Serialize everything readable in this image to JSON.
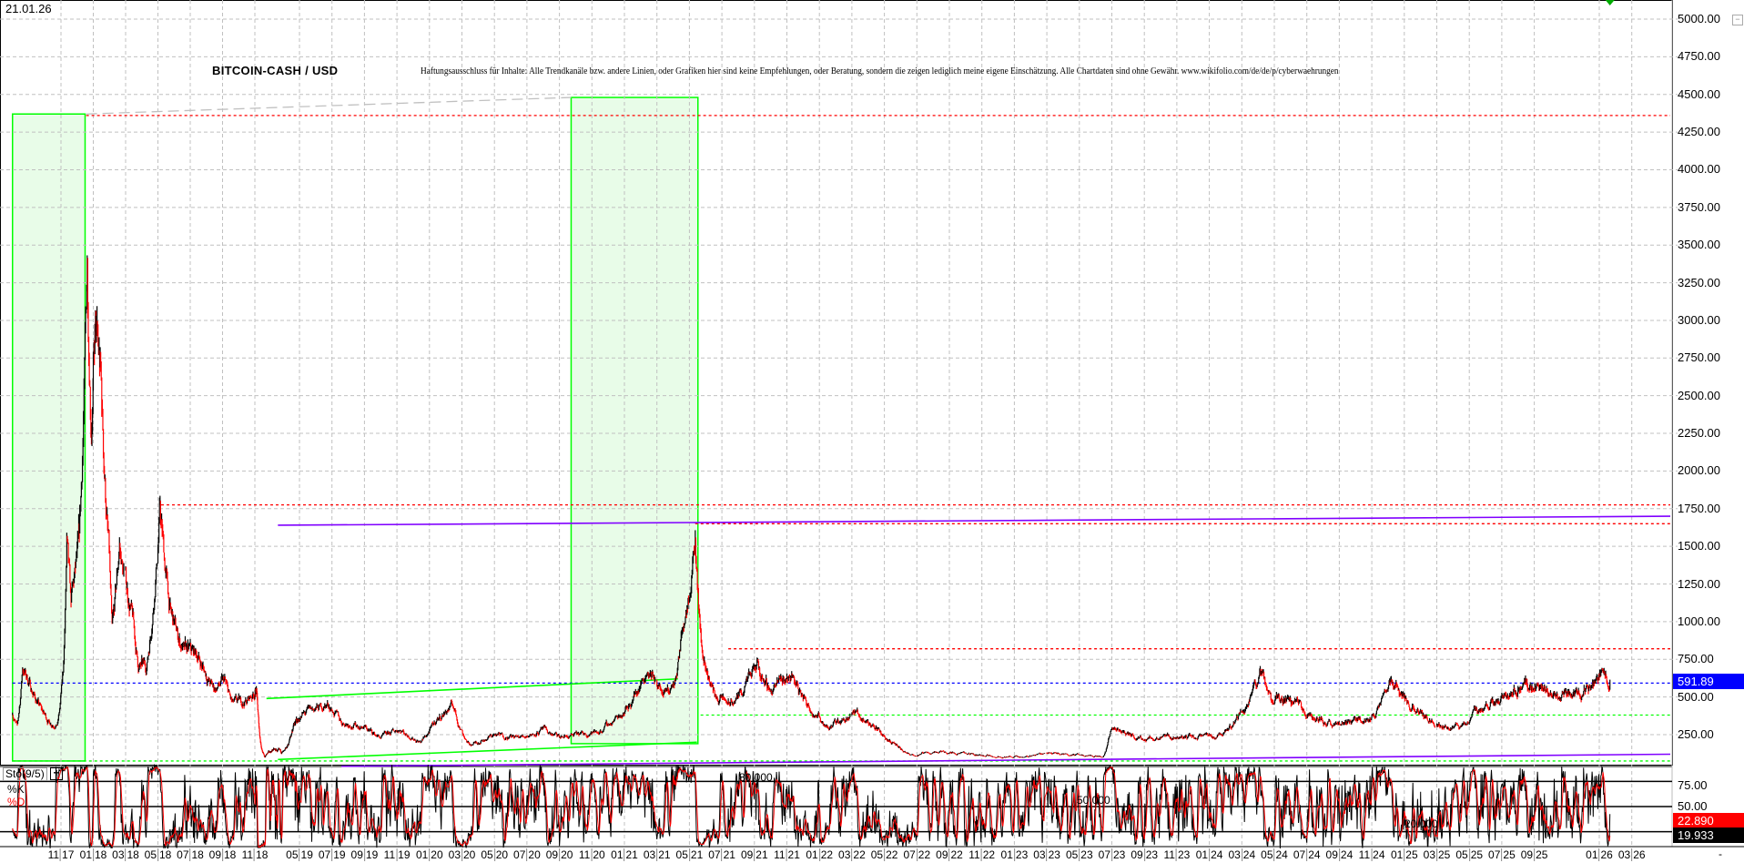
{
  "header": {
    "date": "21.01.26",
    "title": "BITCOIN-CASH / USD",
    "disclaimer": "Haftungsausschluss für Inhalte: Alle Trendkanäle bzw. andere Linien, oder Grafiken hier sind keine Empfehlungen, oder Beratung, sondern die zeigen lediglich meine eigene Einschätzung. Alle Chartdaten sind ohne Gewähr.  www.wikifolio.com/de/de/p/cyberwaehrungen"
  },
  "colors": {
    "up": "#000000",
    "down": "#ff0000",
    "grid": "#c0c0c0",
    "zone_fill": "#e8fce8",
    "zone_border": "#00ff00",
    "last_price": "#0000ff",
    "k_line": "#000000",
    "d_line": "#ff0000"
  },
  "chart_data": [
    {
      "type": "line",
      "subtype": "candlestick",
      "title": "BITCOIN-CASH / USD",
      "ylim": [
        0,
        5000
      ],
      "grid": true,
      "y_ticks": [
        "5000.00",
        "4750.00",
        "4500.00",
        "4250.00",
        "4000.00",
        "3750.00",
        "3500.00",
        "3250.00",
        "3000.00",
        "2750.00",
        "2500.00",
        "2250.00",
        "2000.00",
        "1750.00",
        "1500.00",
        "1250.00",
        "1000.00",
        "750.00",
        "500.00",
        "250.00"
      ],
      "x_ticks": [
        "11 17",
        "01 18",
        "03 18",
        "05 18",
        "07 18",
        "09 18",
        "11 18",
        "05 19",
        "07 19",
        "09 19",
        "11 19",
        "01 20",
        "03 20",
        "05 20",
        "07 20",
        "09 20",
        "11 20",
        "01 21",
        "03 21",
        "05 21",
        "07 21",
        "09 21",
        "11 21",
        "01 22",
        "03 22",
        "05 22",
        "07 22",
        "09 22",
        "11 22",
        "01 23",
        "03 23",
        "05 23",
        "07 23",
        "09 23",
        "11 23",
        "01 24",
        "03 24",
        "05 24",
        "07 24",
        "09 24",
        "11 24",
        "01 25",
        "03 25",
        "05 25",
        "07 25",
        "09 25",
        "01 26",
        "03 26"
      ],
      "x_axis_end": "-",
      "last_price": "591.89",
      "price_points": [
        [
          "2017-08-01",
          400
        ],
        [
          "2017-08-10",
          300
        ],
        [
          "2017-08-20",
          700
        ],
        [
          "2017-09-01",
          600
        ],
        [
          "2017-09-20",
          450
        ],
        [
          "2017-10-10",
          330
        ],
        [
          "2017-10-25",
          320
        ],
        [
          "2017-11-05",
          650
        ],
        [
          "2017-11-12",
          1500
        ],
        [
          "2017-11-20",
          1100
        ],
        [
          "2017-12-05",
          1500
        ],
        [
          "2017-12-20",
          3380
        ],
        [
          "2017-12-28",
          2400
        ],
        [
          "2018-01-05",
          2900
        ],
        [
          "2018-01-15",
          2600
        ],
        [
          "2018-02-01",
          1400
        ],
        [
          "2018-02-06",
          900
        ],
        [
          "2018-02-20",
          1500
        ],
        [
          "2018-03-15",
          1000
        ],
        [
          "2018-03-25",
          700
        ],
        [
          "2018-04-10",
          700
        ],
        [
          "2018-05-05",
          1750
        ],
        [
          "2018-05-25",
          1050
        ],
        [
          "2018-06-20",
          800
        ],
        [
          "2018-07-15",
          780
        ],
        [
          "2018-08-15",
          550
        ],
        [
          "2018-09-05",
          600
        ],
        [
          "2018-09-20",
          450
        ],
        [
          "2018-10-15",
          470
        ],
        [
          "2018-11-08",
          560
        ],
        [
          "2018-11-25",
          200
        ],
        [
          "2018-12-10",
          100
        ],
        [
          "2018-12-20",
          120
        ],
        [
          "2019-01-15",
          150
        ],
        [
          "2019-03-01",
          130
        ],
        [
          "2019-04-05",
          300
        ],
        [
          "2019-05-15",
          400
        ],
        [
          "2019-06-25",
          450
        ],
        [
          "2019-07-20",
          330
        ],
        [
          "2019-09-01",
          300
        ],
        [
          "2019-10-01",
          230
        ],
        [
          "2019-11-05",
          290
        ],
        [
          "2019-12-15",
          200
        ],
        [
          "2020-01-15",
          350
        ],
        [
          "2020-02-15",
          450
        ],
        [
          "2020-03-15",
          180
        ],
        [
          "2020-05-01",
          250
        ],
        [
          "2020-06-15",
          230
        ],
        [
          "2020-08-01",
          280
        ],
        [
          "2020-09-01",
          230
        ],
        [
          "2020-11-15",
          270
        ],
        [
          "2021-01-10",
          450
        ],
        [
          "2021-02-15",
          700
        ],
        [
          "2021-03-15",
          500
        ],
        [
          "2021-04-05",
          600
        ],
        [
          "2021-04-20",
          1000
        ],
        [
          "2021-05-12",
          1600
        ],
        [
          "2021-05-25",
          800
        ],
        [
          "2021-06-20",
          500
        ],
        [
          "2021-07-20",
          450
        ],
        [
          "2021-09-05",
          700
        ],
        [
          "2021-10-01",
          550
        ],
        [
          "2021-11-10",
          650
        ],
        [
          "2021-12-10",
          450
        ],
        [
          "2022-01-20",
          300
        ],
        [
          "2022-03-05",
          400
        ],
        [
          "2022-04-15",
          300
        ],
        [
          "2022-05-15",
          200
        ],
        [
          "2022-06-20",
          110
        ],
        [
          "2022-08-15",
          140
        ],
        [
          "2022-11-10",
          110
        ],
        [
          "2023-01-15",
          100
        ],
        [
          "2023-03-01",
          130
        ],
        [
          "2023-06-15",
          105
        ],
        [
          "2023-07-01",
          300
        ],
        [
          "2023-08-15",
          230
        ],
        [
          "2023-10-15",
          230
        ],
        [
          "2024-01-15",
          240
        ],
        [
          "2024-03-05",
          400
        ],
        [
          "2024-04-05",
          680
        ],
        [
          "2024-04-25",
          480
        ],
        [
          "2024-06-10",
          450
        ],
        [
          "2024-07-15",
          350
        ],
        [
          "2024-09-01",
          320
        ],
        [
          "2024-11-01",
          360
        ],
        [
          "2024-12-05",
          600
        ],
        [
          "2025-01-15",
          450
        ],
        [
          "2025-03-01",
          330
        ],
        [
          "2025-04-10",
          290
        ],
        [
          "2025-05-15",
          400
        ],
        [
          "2025-07-01",
          480
        ],
        [
          "2025-08-15",
          580
        ],
        [
          "2025-10-10",
          520
        ],
        [
          "2025-11-10",
          500
        ],
        [
          "2025-12-20",
          570
        ],
        [
          "2026-01-10",
          660
        ],
        [
          "2026-01-21",
          591.89
        ]
      ],
      "zones": [
        {
          "from": "2017-08-01",
          "to": "2017-12-16",
          "top": 4370,
          "bottom": 75
        },
        {
          "from": "2020-09-23",
          "to": "2021-05-17",
          "top": 4480,
          "bottom": 190
        }
      ],
      "levels": [
        {
          "price": 4360,
          "from": "2017-12-18",
          "color": "#ff0000",
          "style": "dotted"
        },
        {
          "price": 1775,
          "from": "2018-05-07",
          "color": "#ff0000",
          "style": "dotted"
        },
        {
          "price": 1650,
          "from": "2021-05-12",
          "color": "#ff0000",
          "style": "dotted"
        },
        {
          "price": 820,
          "from": "2021-07-13",
          "color": "#ff0000",
          "style": "dotted"
        },
        {
          "price": 591.89,
          "from": "2017-08-01",
          "color": "#0000ff",
          "style": "dotted"
        },
        {
          "price": 380,
          "from": "2021-05-22",
          "color": "#00ff00",
          "style": "dotted"
        },
        {
          "price": 75,
          "from": "2017-08-01",
          "color": "#00ff00",
          "style": "dotted"
        }
      ],
      "trendlines": [
        {
          "from": [
            "2017-12-18",
            4370
          ],
          "to": [
            "2020-09-23",
            4480
          ],
          "color": "#c0c0c0",
          "style": "dashed"
        },
        {
          "from": [
            "2019-02-04",
            1640
          ],
          "to": [
            "2026-05-13",
            1700
          ],
          "color": "#8000ff",
          "style": "solid"
        },
        {
          "from": [
            "2019-07-19",
            40
          ],
          "to": [
            "2026-05-13",
            120
          ],
          "color": "#8000ff",
          "style": "solid"
        },
        {
          "from": [
            "2018-12-18",
            490
          ],
          "to": [
            "2021-04-10",
            620
          ],
          "color": "#00ff00",
          "style": "solid"
        },
        {
          "from": [
            "2019-02-04",
            85
          ],
          "to": [
            "2021-05-15",
            200
          ],
          "color": "#00ff00",
          "style": "solid"
        }
      ],
      "marker": {
        "date": "2026-01-21",
        "shape": "triangle-down",
        "color": "#00aa00"
      }
    },
    {
      "type": "line",
      "title": "Sto(9/5)",
      "ylim": [
        0,
        100
      ],
      "series": [
        {
          "name": "%K",
          "color": "#000000"
        },
        {
          "name": "%D",
          "color": "#ff0000"
        }
      ],
      "y_ticks": [
        "75.00",
        "50.00"
      ],
      "levels": [
        {
          "value": 80,
          "label": "80.000"
        },
        {
          "value": 50,
          "label": "50.000"
        },
        {
          "value": 20,
          "label": "20.000"
        }
      ],
      "last_d": "22.890",
      "last_k": "19.933"
    }
  ]
}
